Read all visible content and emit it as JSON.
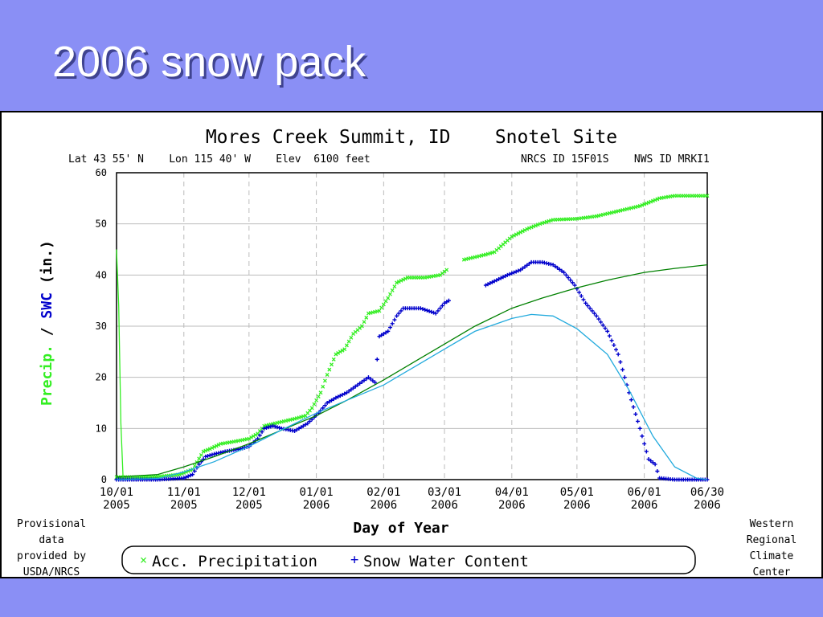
{
  "slide": {
    "title": "2006 snow pack"
  },
  "chart_data": {
    "type": "line",
    "title": "Mores Creek Summit, ID    Snotel Site",
    "subtitle_left": "Lat 43 55' N    Lon 115 40' W    Elev  6100 feet",
    "subtitle_right": "NRCS ID 15F01S    NWS ID MRKI1",
    "xlabel": "Day of Year",
    "ylabel_precip": "Precip.",
    "ylabel_sep": " / ",
    "ylabel_swc": "SWC",
    "ylabel_unit": " (in.)",
    "ylim": [
      0,
      60
    ],
    "yticks": [
      0,
      10,
      20,
      30,
      40,
      50,
      60
    ],
    "x_domain": [
      "2005-10-01",
      "2006-06-30"
    ],
    "xticks": [
      {
        "date": "2005-10-01",
        "line1": "10/01",
        "line2": "2005"
      },
      {
        "date": "2005-11-01",
        "line1": "11/01",
        "line2": "2005"
      },
      {
        "date": "2005-12-01",
        "line1": "12/01",
        "line2": "2005"
      },
      {
        "date": "2006-01-01",
        "line1": "01/01",
        "line2": "2006"
      },
      {
        "date": "2006-02-01",
        "line1": "02/01",
        "line2": "2006"
      },
      {
        "date": "2006-03-01",
        "line1": "03/01",
        "line2": "2006"
      },
      {
        "date": "2006-04-01",
        "line1": "04/01",
        "line2": "2006"
      },
      {
        "date": "2006-05-01",
        "line1": "05/01",
        "line2": "2006"
      },
      {
        "date": "2006-06-01",
        "line1": "06/01",
        "line2": "2006"
      },
      {
        "date": "2006-06-30",
        "line1": "06/30",
        "line2": "2006"
      }
    ],
    "grid": true,
    "legend": {
      "placement": "bottom",
      "items": [
        {
          "marker": "×",
          "label": "Acc. Precipitation",
          "color": "#33ee22"
        },
        {
          "marker": "+",
          "label": "Snow Water Content",
          "color": "#0000cc"
        }
      ]
    },
    "note_left": [
      "Provisional",
      "data",
      "provided by",
      "USDA/NRCS"
    ],
    "note_right": [
      "Western",
      "Regional",
      "Climate",
      "Center"
    ],
    "series": [
      {
        "name": "Acc. Precipitation",
        "style": "markers-x",
        "color": "#33ee22",
        "points": [
          [
            "2005-10-01",
            0.5
          ],
          [
            "2005-10-10",
            0.5
          ],
          [
            "2005-10-20",
            0.6
          ],
          [
            "2005-10-30",
            1.0
          ],
          [
            "2005-11-05",
            2.0
          ],
          [
            "2005-11-10",
            5.5
          ],
          [
            "2005-11-13",
            6.0
          ],
          [
            "2005-11-18",
            7.0
          ],
          [
            "2005-11-25",
            7.5
          ],
          [
            "2005-12-01",
            8.0
          ],
          [
            "2005-12-05",
            9.0
          ],
          [
            "2005-12-08",
            10.5
          ],
          [
            "2005-12-13",
            11.0
          ],
          [
            "2005-12-18",
            11.5
          ],
          [
            "2005-12-23",
            12.0
          ],
          [
            "2005-12-27",
            12.5
          ],
          [
            "2005-12-30",
            14.0
          ],
          [
            "2006-01-03",
            17.0
          ],
          [
            "2006-01-06",
            20.5
          ],
          [
            "2006-01-10",
            24.5
          ],
          [
            "2006-01-14",
            25.5
          ],
          [
            "2006-01-18",
            28.5
          ],
          [
            "2006-01-22",
            30.0
          ],
          [
            "2006-01-25",
            32.5
          ],
          [
            "2006-01-30",
            33.0
          ],
          [
            "2006-02-03",
            35.5
          ],
          [
            "2006-02-07",
            38.5
          ],
          [
            "2006-02-12",
            39.5
          ],
          [
            "2006-02-20",
            39.5
          ],
          [
            "2006-02-27",
            40.0
          ],
          [
            "2006-03-02",
            41.0
          ]
        ],
        "points_b": [
          [
            "2006-03-10",
            43.0
          ],
          [
            "2006-03-20",
            44.0
          ],
          [
            "2006-03-24",
            44.5
          ],
          [
            "2006-03-28",
            46.0
          ],
          [
            "2006-04-01",
            47.5
          ],
          [
            "2006-04-08",
            49.0
          ],
          [
            "2006-04-14",
            50.0
          ],
          [
            "2006-04-20",
            50.8
          ],
          [
            "2006-05-01",
            51.0
          ],
          [
            "2006-05-10",
            51.5
          ],
          [
            "2006-05-20",
            52.5
          ],
          [
            "2006-05-30",
            53.5
          ],
          [
            "2006-06-08",
            55.0
          ],
          [
            "2006-06-15",
            55.5
          ],
          [
            "2006-06-30",
            55.5
          ]
        ]
      },
      {
        "name": "Snow Water Content",
        "style": "markers-plus",
        "color": "#0000cc",
        "points": [
          [
            "2005-10-01",
            0.0
          ],
          [
            "2005-10-20",
            0.0
          ],
          [
            "2005-11-01",
            0.3
          ],
          [
            "2005-11-05",
            1.0
          ],
          [
            "2005-11-08",
            3.0
          ],
          [
            "2005-11-11",
            4.5
          ],
          [
            "2005-11-15",
            5.0
          ],
          [
            "2005-11-20",
            5.5
          ],
          [
            "2005-11-27",
            6.0
          ],
          [
            "2005-12-01",
            6.5
          ],
          [
            "2005-12-05",
            8.0
          ],
          [
            "2005-12-08",
            10.0
          ],
          [
            "2005-12-12",
            10.5
          ],
          [
            "2005-12-16",
            10.0
          ],
          [
            "2005-12-22",
            9.5
          ],
          [
            "2005-12-28",
            11.0
          ],
          [
            "2006-01-02",
            13.0
          ],
          [
            "2006-01-06",
            15.0
          ],
          [
            "2006-01-10",
            16.0
          ],
          [
            "2006-01-15",
            17.0
          ],
          [
            "2006-01-20",
            18.5
          ],
          [
            "2006-01-25",
            20.0
          ],
          [
            "2006-01-28",
            19.0
          ],
          [
            "2006-01-30",
            28.0
          ],
          [
            "2006-02-03",
            29.0
          ],
          [
            "2006-02-07",
            32.0
          ],
          [
            "2006-02-10",
            33.5
          ],
          [
            "2006-02-18",
            33.5
          ],
          [
            "2006-02-25",
            32.5
          ],
          [
            "2006-03-01",
            34.5
          ],
          [
            "2006-03-03",
            35.0
          ]
        ],
        "points_b": [
          [
            "2006-03-20",
            38.0
          ],
          [
            "2006-03-25",
            39.0
          ],
          [
            "2006-03-30",
            40.0
          ],
          [
            "2006-04-05",
            41.0
          ],
          [
            "2006-04-10",
            42.5
          ],
          [
            "2006-04-15",
            42.5
          ],
          [
            "2006-04-20",
            42.0
          ],
          [
            "2006-04-25",
            40.5
          ],
          [
            "2006-04-30",
            38.0
          ],
          [
            "2006-05-05",
            34.5
          ],
          [
            "2006-05-10",
            32.0
          ],
          [
            "2006-05-15",
            29.0
          ],
          [
            "2006-05-20",
            24.5
          ],
          [
            "2006-05-25",
            17.0
          ],
          [
            "2006-05-30",
            10.0
          ],
          [
            "2006-06-03",
            4.0
          ],
          [
            "2006-06-06",
            3.0
          ],
          [
            "2006-06-08",
            0.3
          ],
          [
            "2006-06-15",
            0.0
          ],
          [
            "2006-06-30",
            0.0
          ]
        ]
      },
      {
        "name": "",
        "style": "line",
        "color": "#008000",
        "points": [
          [
            "2005-10-01",
            0.5
          ],
          [
            "2005-10-20",
            1.0
          ],
          [
            "2005-11-01",
            2.5
          ],
          [
            "2005-11-15",
            4.5
          ],
          [
            "2005-12-01",
            7.0
          ],
          [
            "2005-12-15",
            9.5
          ],
          [
            "2006-01-01",
            12.5
          ],
          [
            "2006-01-15",
            15.5
          ],
          [
            "2006-02-01",
            19.5
          ],
          [
            "2006-02-15",
            23.0
          ],
          [
            "2006-03-01",
            26.5
          ],
          [
            "2006-03-15",
            30.0
          ],
          [
            "2006-04-01",
            33.5
          ],
          [
            "2006-04-15",
            35.5
          ],
          [
            "2006-05-01",
            37.5
          ],
          [
            "2006-05-15",
            39.0
          ],
          [
            "2006-06-01",
            40.5
          ],
          [
            "2006-06-15",
            41.3
          ],
          [
            "2006-06-30",
            42.0
          ]
        ]
      },
      {
        "name": "",
        "style": "line",
        "color": "#22aadd",
        "points": [
          [
            "2005-10-01",
            0.0
          ],
          [
            "2005-10-20",
            0.2
          ],
          [
            "2005-11-01",
            1.5
          ],
          [
            "2005-11-15",
            3.5
          ],
          [
            "2005-12-01",
            6.5
          ],
          [
            "2005-12-15",
            9.5
          ],
          [
            "2006-01-01",
            13.0
          ],
          [
            "2006-01-15",
            15.5
          ],
          [
            "2006-02-01",
            18.5
          ],
          [
            "2006-02-15",
            22.0
          ],
          [
            "2006-03-01",
            25.5
          ],
          [
            "2006-03-15",
            29.0
          ],
          [
            "2006-04-01",
            31.5
          ],
          [
            "2006-04-10",
            32.3
          ],
          [
            "2006-04-20",
            32.0
          ],
          [
            "2006-05-01",
            29.5
          ],
          [
            "2006-05-15",
            24.5
          ],
          [
            "2006-05-25",
            17.5
          ],
          [
            "2006-06-05",
            8.5
          ],
          [
            "2006-06-15",
            2.5
          ],
          [
            "2006-06-25",
            0.3
          ],
          [
            "2006-06-30",
            0.0
          ]
        ]
      },
      {
        "name": "",
        "style": "line",
        "color": "#33ee22",
        "points": [
          [
            "2005-10-01",
            45.0
          ],
          [
            "2005-10-02",
            34.0
          ],
          [
            "2005-10-03",
            11.0
          ],
          [
            "2005-10-04",
            0.5
          ]
        ]
      }
    ]
  }
}
